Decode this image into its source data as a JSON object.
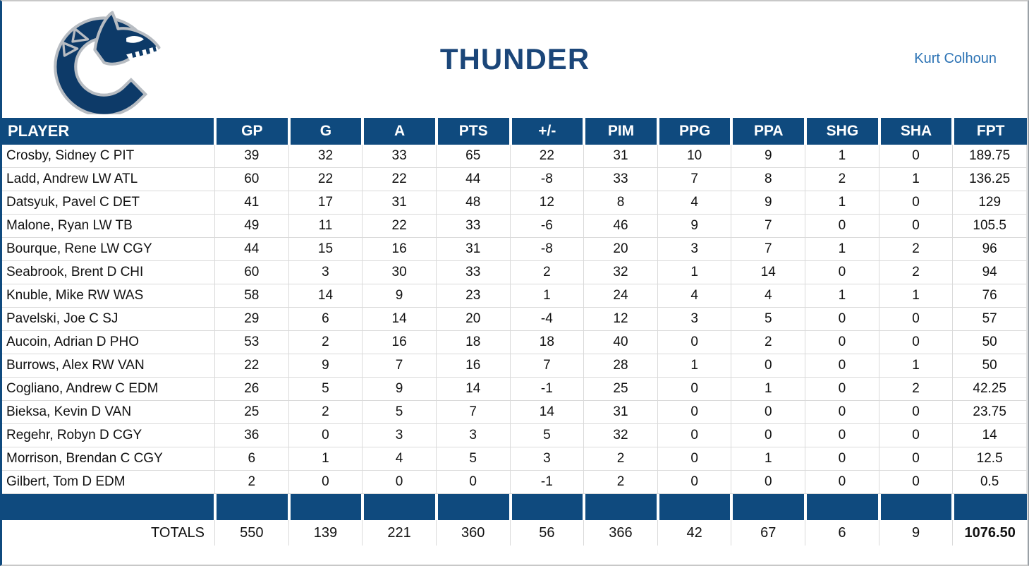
{
  "page": {
    "title": "THUNDER",
    "owner": "Kurt Colhoun"
  },
  "logo": {
    "name": "vancouver-canucks-orca-logo"
  },
  "colors": {
    "header_bg": "#0f4a7e",
    "title_text": "#1b4679",
    "owner_text": "#2e74b5",
    "gridline": "#dadada",
    "logo_navy": "#0d3a68",
    "logo_silver": "#b7bcc2"
  },
  "table": {
    "columns": [
      "PLAYER",
      "GP",
      "G",
      "A",
      "PTS",
      "+/-",
      "PIM",
      "PPG",
      "PPA",
      "SHG",
      "SHA",
      "FPT"
    ],
    "rows": [
      [
        "Crosby, Sidney C PIT",
        "39",
        "32",
        "33",
        "65",
        "22",
        "31",
        "10",
        "9",
        "1",
        "0",
        "189.75"
      ],
      [
        "Ladd, Andrew LW ATL",
        "60",
        "22",
        "22",
        "44",
        "-8",
        "33",
        "7",
        "8",
        "2",
        "1",
        "136.25"
      ],
      [
        "Datsyuk, Pavel C DET",
        "41",
        "17",
        "31",
        "48",
        "12",
        "8",
        "4",
        "9",
        "1",
        "0",
        "129"
      ],
      [
        "Malone, Ryan LW TB",
        "49",
        "11",
        "22",
        "33",
        "-6",
        "46",
        "9",
        "7",
        "0",
        "0",
        "105.5"
      ],
      [
        "Bourque, Rene LW CGY",
        "44",
        "15",
        "16",
        "31",
        "-8",
        "20",
        "3",
        "7",
        "1",
        "2",
        "96"
      ],
      [
        "Seabrook, Brent D CHI",
        "60",
        "3",
        "30",
        "33",
        "2",
        "32",
        "1",
        "14",
        "0",
        "2",
        "94"
      ],
      [
        "Knuble, Mike RW WAS",
        "58",
        "14",
        "9",
        "23",
        "1",
        "24",
        "4",
        "4",
        "1",
        "1",
        "76"
      ],
      [
        "Pavelski, Joe C SJ",
        "29",
        "6",
        "14",
        "20",
        "-4",
        "12",
        "3",
        "5",
        "0",
        "0",
        "57"
      ],
      [
        "Aucoin, Adrian D PHO",
        "53",
        "2",
        "16",
        "18",
        "18",
        "40",
        "0",
        "2",
        "0",
        "0",
        "50"
      ],
      [
        "Burrows, Alex RW VAN",
        "22",
        "9",
        "7",
        "16",
        "7",
        "28",
        "1",
        "0",
        "0",
        "1",
        "50"
      ],
      [
        "Cogliano, Andrew C EDM",
        "26",
        "5",
        "9",
        "14",
        "-1",
        "25",
        "0",
        "1",
        "0",
        "2",
        "42.25"
      ],
      [
        "Bieksa, Kevin D VAN",
        "25",
        "2",
        "5",
        "7",
        "14",
        "31",
        "0",
        "0",
        "0",
        "0",
        "23.75"
      ],
      [
        "Regehr, Robyn D CGY",
        "36",
        "0",
        "3",
        "3",
        "5",
        "32",
        "0",
        "0",
        "0",
        "0",
        "14"
      ],
      [
        "Morrison, Brendan C CGY",
        "6",
        "1",
        "4",
        "5",
        "3",
        "2",
        "0",
        "1",
        "0",
        "0",
        "12.5"
      ],
      [
        "Gilbert, Tom D EDM",
        "2",
        "0",
        "0",
        "0",
        "-1",
        "2",
        "0",
        "0",
        "0",
        "0",
        "0.5"
      ]
    ],
    "totals_label": "TOTALS",
    "totals": [
      "550",
      "139",
      "221",
      "360",
      "56",
      "366",
      "42",
      "67",
      "6",
      "9",
      "1076.50"
    ]
  }
}
